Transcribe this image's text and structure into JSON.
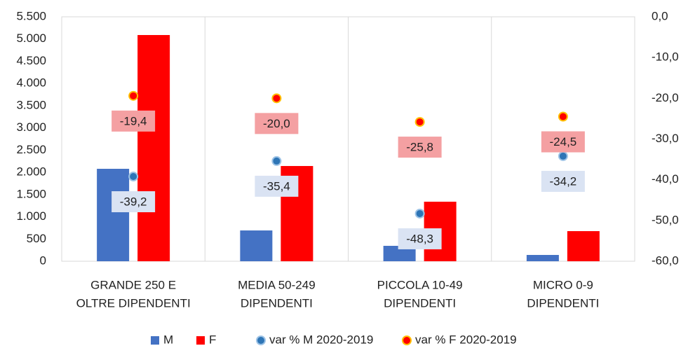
{
  "chart_data": {
    "type": "bar",
    "categories": [
      [
        "GRANDE 250 E",
        "OLTRE DIPENDENTI"
      ],
      [
        "MEDIA 50-249",
        "DIPENDENTI"
      ],
      [
        "PICCOLA 10-49",
        "DIPENDENTI"
      ],
      [
        "MICRO 0-9",
        "DIPENDENTI"
      ]
    ],
    "series": [
      {
        "name": "M",
        "type": "bar",
        "color": "#4472c4",
        "values": [
          2080,
          693,
          347,
          142
        ]
      },
      {
        "name": "F",
        "type": "bar",
        "color": "#ff0000",
        "values": [
          5090,
          2143,
          1340,
          678
        ]
      },
      {
        "name": "var % M 2020-2019",
        "type": "scatter",
        "axis": "y2",
        "color": "#2e75b6",
        "edge": "#9dc3e6",
        "label_color": "#dae3f3",
        "values": [
          -39.2,
          -35.4,
          -48.3,
          -34.2
        ],
        "value_labels": [
          "-39,2",
          "-35,4",
          "-48,3",
          "-34,2"
        ]
      },
      {
        "name": "var % F 2020-2019",
        "type": "scatter",
        "axis": "y2",
        "color": "#ff0000",
        "edge": "#ffc000",
        "label_color": "#f4a0a2",
        "values": [
          -19.4,
          -20.0,
          -25.8,
          -24.5
        ],
        "value_labels": [
          "-19,4",
          "-20,0",
          "-25,8",
          "-24,5"
        ]
      }
    ],
    "ylim": [
      0,
      5500
    ],
    "yticks": [
      0,
      500,
      {
        "value": 1000,
        "label": "1.000"
      },
      {
        "value": 1500,
        "label": "1.500"
      },
      {
        "value": 2000,
        "label": "2.000"
      },
      {
        "value": 2500,
        "label": "2.500"
      },
      {
        "value": 3000,
        "label": "3.000"
      },
      {
        "value": 3500,
        "label": "3.500"
      },
      {
        "value": 4000,
        "label": "4.000"
      },
      {
        "value": 4500,
        "label": "4.500"
      },
      {
        "value": 5000,
        "label": "5.000"
      },
      {
        "value": 5500,
        "label": "5.500"
      }
    ],
    "y2lim": [
      -60,
      0
    ],
    "y2ticks": [
      {
        "value": -60,
        "label": "-60,0"
      },
      {
        "value": -50,
        "label": "-50,0"
      },
      {
        "value": -40,
        "label": "-40,0"
      },
      {
        "value": -30,
        "label": "-30,0"
      },
      {
        "value": -20,
        "label": "-20,0"
      },
      {
        "value": -10,
        "label": "-10,0"
      },
      {
        "value": 0,
        "label": "0,0"
      }
    ],
    "legend": "bottom"
  }
}
